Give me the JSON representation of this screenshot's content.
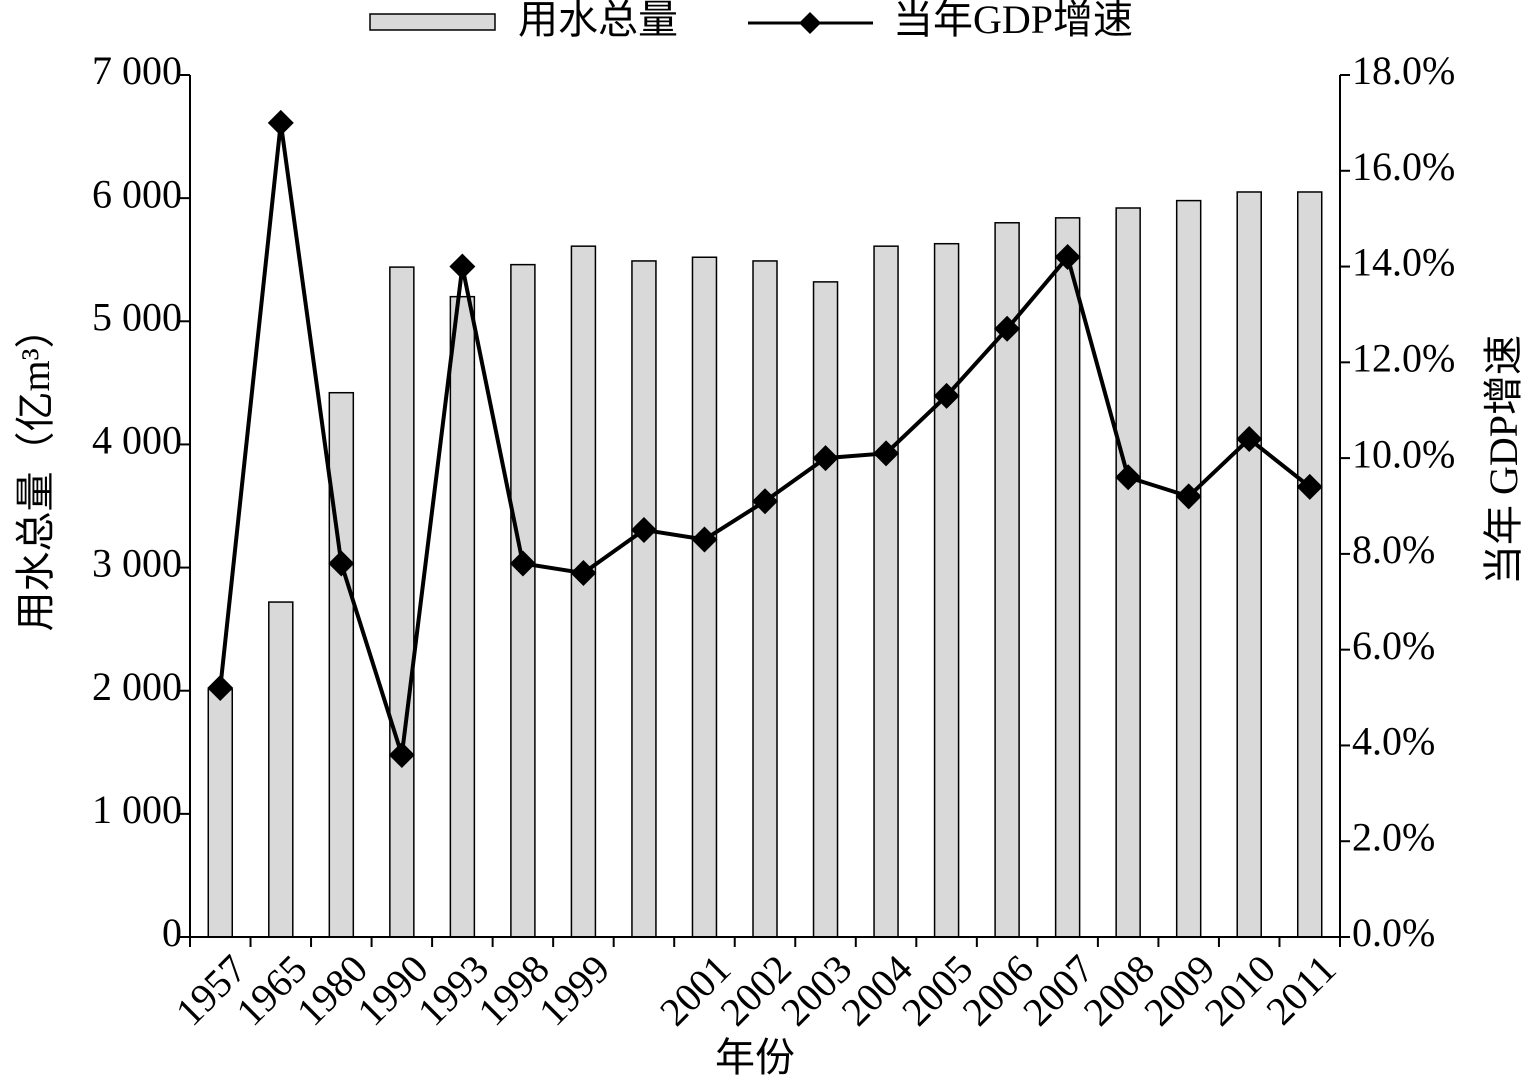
{
  "chart_data": {
    "type": "bar_line",
    "categories": [
      "1957",
      "1965",
      "1980",
      "1990",
      "1993",
      "1998",
      "1999",
      null,
      "2001",
      "2002",
      "2003",
      "2004",
      "2005",
      "2006",
      "2007",
      "2008",
      "2009",
      "2010",
      "2011"
    ],
    "series": [
      {
        "name": "用水总量",
        "type": "bar",
        "color": "#d9d9d9",
        "axis": "y",
        "values": [
          2010,
          2720,
          4420,
          5440,
          5200,
          5460,
          5610,
          5490,
          5520,
          5490,
          5320,
          5610,
          5630,
          5800,
          5840,
          5920,
          5980,
          6050,
          6050
        ]
      },
      {
        "name": "当年GDP增速",
        "type": "line",
        "color": "#000000",
        "axis": "y2",
        "values": [
          5.2,
          17.0,
          7.8,
          3.8,
          14.0,
          7.8,
          7.6,
          8.5,
          8.3,
          9.1,
          10.0,
          10.1,
          11.3,
          12.7,
          14.2,
          9.6,
          9.2,
          10.4,
          9.4
        ]
      }
    ],
    "ylabel": "用水总量（亿m³）",
    "y2label": "当年 GDP增速",
    "xlabel": "年份",
    "ylim": [
      0,
      7000
    ],
    "yticks": [
      0,
      {
        "value": 1000,
        "label": "1 000"
      },
      {
        "value": 2000,
        "label": "2 000"
      },
      {
        "value": 3000,
        "label": "3 000"
      },
      {
        "value": 4000,
        "label": "4 000"
      },
      {
        "value": 5000,
        "label": "5 000"
      },
      {
        "value": 6000,
        "label": "6 000"
      },
      {
        "value": 7000,
        "label": "7 000"
      }
    ],
    "y2lim": [
      0,
      18
    ],
    "y2ticks": [
      {
        "value": 0,
        "label": "0.0%"
      },
      {
        "value": 2,
        "label": "2.0%"
      },
      {
        "value": 4,
        "label": "4.0%"
      },
      {
        "value": 6,
        "label": "6.0%"
      },
      {
        "value": 8,
        "label": "8.0%"
      },
      {
        "value": 10,
        "label": "10.0%"
      },
      {
        "value": 12,
        "label": "12.0%"
      },
      {
        "value": 14,
        "label": "14.0%"
      },
      {
        "value": 16,
        "label": "16.0%"
      },
      {
        "value": 18,
        "label": "18.0%"
      }
    ],
    "legend": "top",
    "grid": false
  }
}
